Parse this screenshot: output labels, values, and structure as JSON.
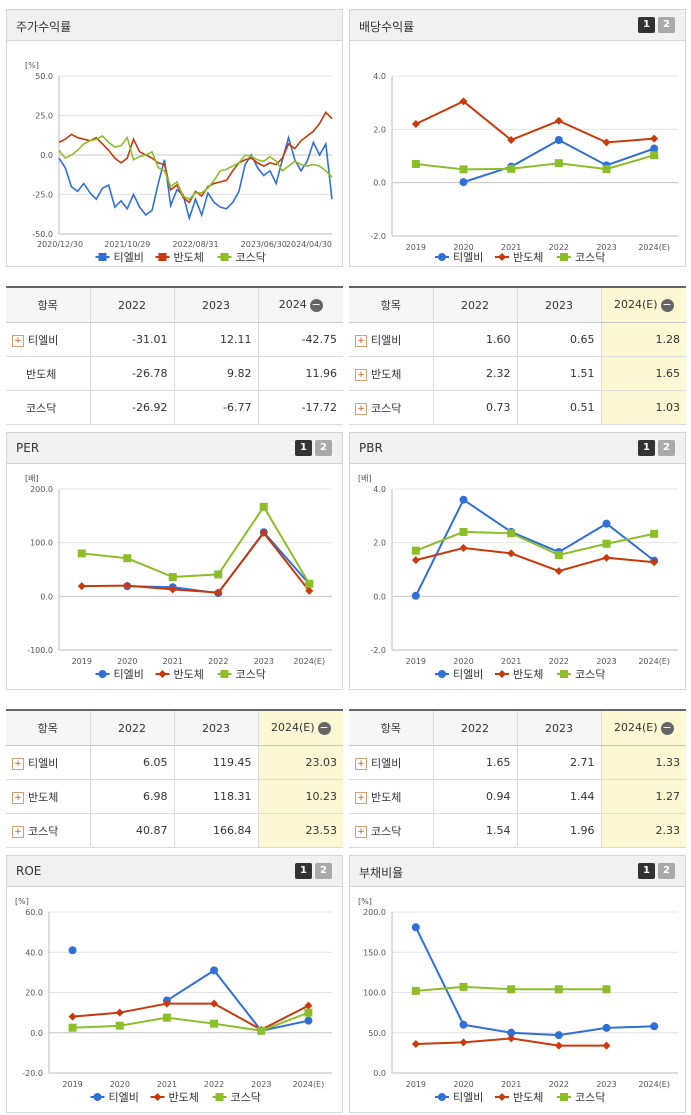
{
  "colors": {
    "tlb": "#2f6fd8",
    "semi": "#c83a0c",
    "kosdaq": "#8cbe2a"
  },
  "series_names": [
    "티엘비",
    "반도체",
    "코스닥"
  ],
  "tables": {
    "ret": {
      "cols": [
        "항목",
        "2022",
        "2023",
        "2024"
      ],
      "header_icon": "minus-icon",
      "highlight_last": false,
      "rows": [
        {
          "name": "티엘비",
          "plus": true,
          "values": [
            "-31.01",
            "12.11",
            "-42.75"
          ]
        },
        {
          "name": "반도체",
          "plus": false,
          "values": [
            "-26.78",
            "9.82",
            "11.96"
          ]
        },
        {
          "name": "코스닥",
          "plus": false,
          "values": [
            "-26.92",
            "-6.77",
            "-17.72"
          ]
        }
      ]
    },
    "div": {
      "cols": [
        "항목",
        "2022",
        "2023",
        "2024(E)"
      ],
      "header_icon": "minus-icon",
      "highlight_last": true,
      "rows": [
        {
          "name": "티엘비",
          "plus": true,
          "values": [
            "1.60",
            "0.65",
            "1.28"
          ]
        },
        {
          "name": "반도체",
          "plus": true,
          "values": [
            "2.32",
            "1.51",
            "1.65"
          ]
        },
        {
          "name": "코스닥",
          "plus": true,
          "values": [
            "0.73",
            "0.51",
            "1.03"
          ]
        }
      ]
    },
    "per": {
      "cols": [
        "항목",
        "2022",
        "2023",
        "2024(E)"
      ],
      "header_icon": "minus-icon",
      "highlight_last": true,
      "rows": [
        {
          "name": "티엘비",
          "plus": true,
          "values": [
            "6.05",
            "119.45",
            "23.03"
          ]
        },
        {
          "name": "반도체",
          "plus": true,
          "values": [
            "6.98",
            "118.31",
            "10.23"
          ]
        },
        {
          "name": "코스닥",
          "plus": true,
          "values": [
            "40.87",
            "166.84",
            "23.53"
          ]
        }
      ]
    },
    "pbr": {
      "cols": [
        "항목",
        "2022",
        "2023",
        "2024(E)"
      ],
      "header_icon": "minus-icon",
      "highlight_last": true,
      "rows": [
        {
          "name": "티엘비",
          "plus": true,
          "values": [
            "1.65",
            "2.71",
            "1.33"
          ]
        },
        {
          "name": "반도체",
          "plus": true,
          "values": [
            "0.94",
            "1.44",
            "1.27"
          ]
        },
        {
          "name": "코스닥",
          "plus": true,
          "values": [
            "1.54",
            "1.96",
            "2.33"
          ]
        }
      ]
    }
  },
  "chart_data": [
    {
      "id": "ret",
      "type": "line",
      "title": "주가수익률",
      "unit": "[%]",
      "ylim": [
        -50,
        50
      ],
      "yticks": [
        "50.0",
        "25.0",
        "0.0",
        "-25.0",
        "-50.0"
      ],
      "x_range": [
        "2020-12-30",
        "2024-06-30"
      ],
      "xticks": [
        "2020/12/30",
        "2021/10/29",
        "2022/08/31",
        "2023/06/30",
        "2024/04/30"
      ],
      "series": [
        {
          "name": "티엘비",
          "values": [
            -2,
            -8,
            -20,
            -23,
            -18,
            -24,
            -28,
            -21,
            -19,
            -33,
            -29,
            -34,
            -25,
            -33,
            -38,
            -35,
            -18,
            -3,
            -32,
            -22,
            -25,
            -40,
            -28,
            -38,
            -24,
            -30,
            -33,
            -34,
            -30,
            -23,
            -6,
            0,
            -8,
            -13,
            -10,
            -18,
            -3,
            11,
            -3,
            -10,
            -4,
            8,
            0,
            7,
            -28
          ]
        },
        {
          "name": "반도체",
          "values": [
            8,
            10,
            13,
            11,
            10,
            9,
            11,
            7,
            3,
            -2,
            -5,
            -2,
            10,
            2,
            0,
            -2,
            -5,
            -6,
            -22,
            -19,
            -27,
            -30,
            -23,
            -26,
            -20,
            -18,
            -17,
            -16,
            -10,
            -5,
            -3,
            -2,
            -5,
            -7,
            -5,
            -6,
            -2,
            7,
            4,
            9,
            12,
            15,
            20,
            27,
            23
          ]
        },
        {
          "name": "코스닥",
          "values": [
            3,
            -2,
            0,
            3,
            7,
            9,
            10,
            12,
            8,
            5,
            6,
            11,
            -3,
            -1,
            0,
            2,
            -8,
            -10,
            -20,
            -17,
            -26,
            -28,
            -24,
            -24,
            -21,
            -16,
            -10,
            -9,
            -7,
            -5,
            0,
            -1,
            -3,
            -4,
            -1,
            -4,
            -10,
            -7,
            -4,
            -6,
            -7,
            -6,
            -7,
            -10,
            -14
          ]
        }
      ]
    },
    {
      "id": "div",
      "type": "line",
      "title": "배당수익률",
      "ylim": [
        -2,
        4
      ],
      "yticks": [
        "4.0",
        "2.0",
        "0.0",
        "-2.0"
      ],
      "categories": [
        "2019",
        "2020",
        "2021",
        "2022",
        "2023",
        "2024(E)"
      ],
      "series": [
        {
          "name": "티엘비",
          "values": [
            null,
            0.02,
            0.6,
            1.6,
            0.65,
            1.28
          ]
        },
        {
          "name": "반도체",
          "values": [
            2.2,
            3.05,
            1.6,
            2.32,
            1.51,
            1.65
          ]
        },
        {
          "name": "코스닥",
          "values": [
            0.7,
            0.5,
            0.52,
            0.73,
            0.51,
            1.03
          ]
        }
      ]
    },
    {
      "id": "per",
      "type": "line",
      "title": "PER",
      "unit": "[배]",
      "ylim": [
        -100,
        200
      ],
      "yticks": [
        "200.0",
        "100.0",
        "0.0",
        "-100.0"
      ],
      "categories": [
        "2019",
        "2020",
        "2021",
        "2022",
        "2023",
        "2024(E)"
      ],
      "series": [
        {
          "name": "티엘비",
          "values": [
            null,
            19,
            17,
            6.05,
            119.45,
            23.03
          ]
        },
        {
          "name": "반도체",
          "values": [
            19,
            20,
            13,
            6.98,
            118.31,
            10.23
          ]
        },
        {
          "name": "코스닥",
          "values": [
            80,
            71,
            36,
            40.87,
            166.84,
            23.53
          ]
        }
      ]
    },
    {
      "id": "pbr",
      "type": "line",
      "title": "PBR",
      "unit": "[배]",
      "ylim": [
        -2,
        4
      ],
      "yticks": [
        "4.0",
        "2.0",
        "0.0",
        "-2.0"
      ],
      "categories": [
        "2019",
        "2020",
        "2021",
        "2022",
        "2023",
        "2024(E)"
      ],
      "series": [
        {
          "name": "티엘비",
          "values": [
            0.02,
            3.6,
            2.4,
            1.65,
            2.71,
            1.33
          ]
        },
        {
          "name": "반도체",
          "values": [
            1.35,
            1.8,
            1.6,
            0.94,
            1.44,
            1.27
          ]
        },
        {
          "name": "코스닥",
          "values": [
            1.7,
            2.4,
            2.35,
            1.54,
            1.96,
            2.33
          ]
        }
      ]
    },
    {
      "id": "roe",
      "type": "line",
      "title": "ROE",
      "unit": "[%]",
      "ylim": [
        -20,
        60
      ],
      "yticks": [
        "60.0",
        "40.0",
        "20.0",
        "0.0",
        "-20.0"
      ],
      "categories": [
        "2019",
        "2020",
        "2021",
        "2022",
        "2023",
        "2024(E)"
      ],
      "series": [
        {
          "name": "티엘비",
          "values": [
            41,
            null,
            16,
            31,
            1,
            6
          ]
        },
        {
          "name": "반도체",
          "values": [
            8,
            10,
            14.5,
            14.5,
            1.5,
            13.5
          ]
        },
        {
          "name": "코스닥",
          "values": [
            2.5,
            3.5,
            7.5,
            4.5,
            1,
            10
          ]
        }
      ]
    },
    {
      "id": "debt",
      "type": "line",
      "title": "부채비율",
      "unit": "[%]",
      "ylim": [
        0,
        200
      ],
      "yticks": [
        "200.0",
        "150.0",
        "100.0",
        "50.0",
        "0.0"
      ],
      "categories": [
        "2019",
        "2020",
        "2021",
        "2022",
        "2023",
        "2024(E)"
      ],
      "series": [
        {
          "name": "티엘비",
          "values": [
            181,
            60,
            50,
            47,
            56,
            58
          ]
        },
        {
          "name": "반도체",
          "values": [
            36,
            38,
            43,
            34,
            34,
            null
          ]
        },
        {
          "name": "코스닥",
          "values": [
            102,
            107,
            104,
            104,
            104,
            null
          ]
        }
      ]
    }
  ]
}
